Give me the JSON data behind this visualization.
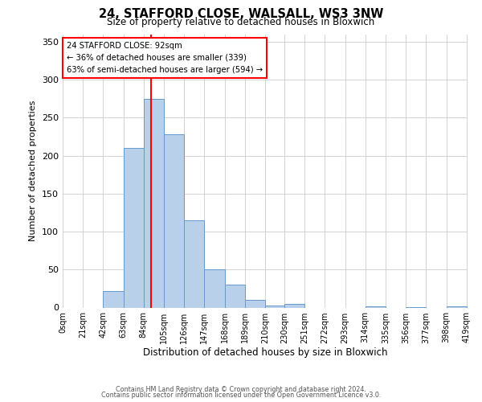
{
  "title": "24, STAFFORD CLOSE, WALSALL, WS3 3NW",
  "subtitle": "Size of property relative to detached houses in Bloxwich",
  "xlabel": "Distribution of detached houses by size in Bloxwich",
  "ylabel": "Number of detached properties",
  "bar_left_edges": [
    0,
    21,
    42,
    63,
    84,
    105,
    126,
    147,
    168,
    189,
    210,
    230,
    251,
    272,
    293,
    314,
    335,
    356,
    377,
    398
  ],
  "bar_heights": [
    0,
    0,
    22,
    210,
    275,
    228,
    115,
    50,
    30,
    10,
    3,
    5,
    0,
    0,
    0,
    2,
    0,
    1,
    0,
    2
  ],
  "bin_width": 21,
  "bar_color": "#b8d0ea",
  "bar_edge_color": "#6699cc",
  "vline_x": 92,
  "vline_color": "red",
  "ylim": [
    0,
    360
  ],
  "xtick_labels": [
    "0sqm",
    "21sqm",
    "42sqm",
    "63sqm",
    "84sqm",
    "105sqm",
    "126sqm",
    "147sqm",
    "168sqm",
    "189sqm",
    "210sqm",
    "230sqm",
    "251sqm",
    "272sqm",
    "293sqm",
    "314sqm",
    "335sqm",
    "356sqm",
    "377sqm",
    "398sqm",
    "419sqm"
  ],
  "xtick_positions": [
    0,
    21,
    42,
    63,
    84,
    105,
    126,
    147,
    168,
    189,
    210,
    230,
    251,
    272,
    293,
    314,
    335,
    356,
    377,
    398,
    419
  ],
  "ytick_positions": [
    0,
    50,
    100,
    150,
    200,
    250,
    300,
    350
  ],
  "annotation_line1": "24 STAFFORD CLOSE: 92sqm",
  "annotation_line2": "← 36% of detached houses are smaller (339)",
  "annotation_line3": "63% of semi-detached houses are larger (594) →",
  "footer1": "Contains HM Land Registry data © Crown copyright and database right 2024.",
  "footer2": "Contains public sector information licensed under the Open Government Licence v3.0.",
  "background_color": "#ffffff",
  "grid_color": "#cccccc"
}
